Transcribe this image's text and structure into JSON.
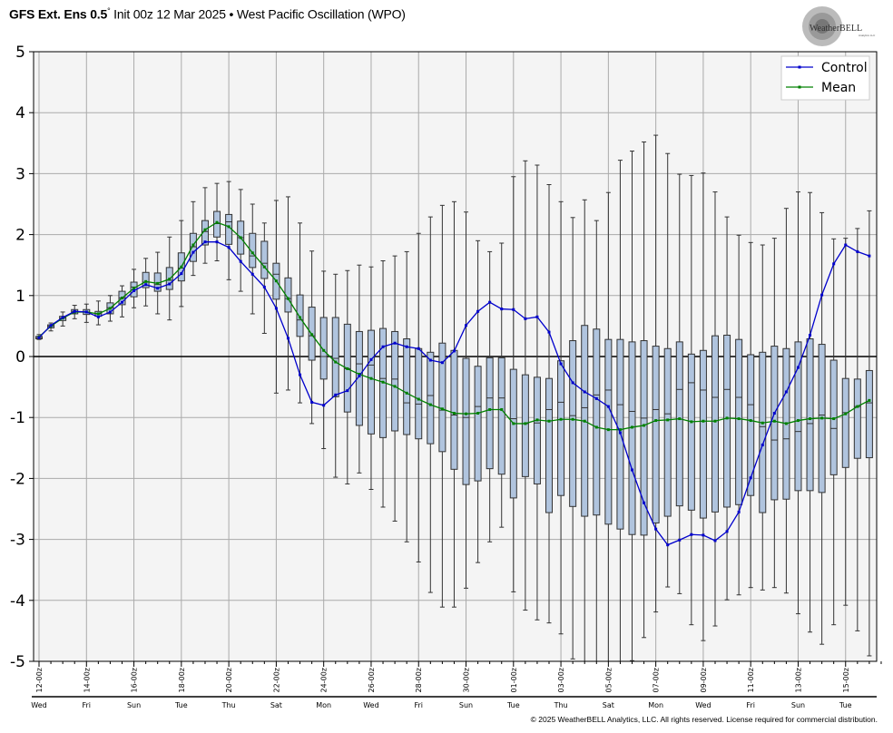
{
  "title": {
    "model": "GFS Ext.  Ens 0.5",
    "degree": "°",
    "rest": " Init 00z 12 Mar 2025 • West Pacific Oscillation (WPO)"
  },
  "logo": {
    "text": "WeatherBELL",
    "subtext": "Analytics LLC"
  },
  "copyright": "© 2025 WeatherBELL Analytics, LLC. All rights reserved. License required for commercial distribution.",
  "colors": {
    "control": "#0000cc",
    "mean": "#008000",
    "box_fill": "#b0c4de",
    "box_stroke": "#333333",
    "plot_bg": "#f4f4f4",
    "grid": "#aaaaaa"
  },
  "chart_data": {
    "type": "box",
    "title": "West Pacific Oscillation (WPO)",
    "ylim": [
      -5,
      5
    ],
    "yticks": [
      "5",
      "4",
      "3",
      "2",
      "1",
      "0",
      "-1",
      "-2",
      "-3",
      "-4",
      "-5"
    ],
    "step_hours": 12,
    "grid": true,
    "legend_position": "top-right",
    "legend": [
      "Control",
      "Mean"
    ],
    "xtick_labels": [
      "12-00z",
      "14-00z",
      "16-00z",
      "18-00z",
      "20-00z",
      "22-00z",
      "24-00z",
      "26-00z",
      "28-00z",
      "30-00z",
      "01-00z",
      "03-00z",
      "05-00z",
      "07-00z",
      "09-00z",
      "11-00z",
      "13-00z",
      "15-00z"
    ],
    "day_labels": [
      "Wed",
      "Fri",
      "Sun",
      "Tue",
      "Thu",
      "Sat",
      "Mon",
      "Wed",
      "Fri",
      "Sun",
      "Tue",
      "Thu",
      "Sat",
      "Mon",
      "Wed",
      "Fri",
      "Sun",
      "Tue"
    ],
    "control": [
      0.31,
      0.51,
      0.64,
      0.74,
      0.73,
      0.65,
      0.73,
      0.89,
      1.08,
      1.18,
      1.12,
      1.19,
      1.36,
      1.71,
      1.88,
      1.88,
      1.79,
      1.56,
      1.35,
      1.14,
      0.79,
      0.3,
      -0.3,
      -0.75,
      -0.8,
      -0.63,
      -0.56,
      -0.32,
      -0.05,
      0.16,
      0.22,
      0.16,
      0.13,
      -0.06,
      -0.1,
      0.09,
      0.51,
      0.74,
      0.89,
      0.78,
      0.77,
      0.62,
      0.65,
      0.4,
      -0.12,
      -0.43,
      -0.58,
      -0.69,
      -0.82,
      -1.25,
      -1.86,
      -2.4,
      -2.83,
      -3.09,
      -3.01,
      -2.92,
      -2.93,
      -3.02,
      -2.87,
      -2.55,
      -1.99,
      -1.45,
      -0.93,
      -0.58,
      -0.18,
      0.35,
      1.01,
      1.52,
      1.83,
      1.72,
      1.65
    ],
    "mean": [
      0.32,
      0.5,
      0.63,
      0.73,
      0.73,
      0.7,
      0.79,
      0.96,
      1.12,
      1.23,
      1.2,
      1.27,
      1.47,
      1.83,
      2.08,
      2.2,
      2.13,
      1.95,
      1.7,
      1.47,
      1.24,
      0.95,
      0.64,
      0.36,
      0.1,
      -0.09,
      -0.2,
      -0.29,
      -0.36,
      -0.42,
      -0.49,
      -0.6,
      -0.7,
      -0.79,
      -0.86,
      -0.93,
      -0.94,
      -0.93,
      -0.87,
      -0.87,
      -1.1,
      -1.1,
      -1.04,
      -1.06,
      -1.03,
      -1.03,
      -1.06,
      -1.16,
      -1.2,
      -1.2,
      -1.16,
      -1.13,
      -1.05,
      -1.04,
      -1.02,
      -1.07,
      -1.06,
      -1.06,
      -1.01,
      -1.02,
      -1.05,
      -1.09,
      -1.06,
      -1.1,
      -1.05,
      -1.02,
      -1.01,
      -1.02,
      -0.94,
      -0.82,
      -0.72
    ],
    "boxes": [
      [
        0.28,
        0.29,
        0.31,
        0.33,
        0.36
      ],
      [
        0.42,
        0.47,
        0.5,
        0.52,
        0.55
      ],
      [
        0.5,
        0.59,
        0.63,
        0.66,
        0.73
      ],
      [
        0.62,
        0.7,
        0.74,
        0.77,
        0.84
      ],
      [
        0.56,
        0.69,
        0.73,
        0.77,
        0.86
      ],
      [
        0.52,
        0.66,
        0.7,
        0.74,
        0.91
      ],
      [
        0.58,
        0.7,
        0.8,
        0.88,
        1.0
      ],
      [
        0.65,
        0.85,
        0.96,
        1.07,
        1.16
      ],
      [
        0.8,
        0.98,
        1.14,
        1.22,
        1.43
      ],
      [
        0.83,
        1.13,
        1.22,
        1.38,
        1.61
      ],
      [
        0.7,
        1.07,
        1.18,
        1.37,
        1.71
      ],
      [
        0.6,
        1.1,
        1.25,
        1.46,
        1.96
      ],
      [
        0.82,
        1.24,
        1.45,
        1.7,
        2.23
      ],
      [
        1.33,
        1.56,
        1.8,
        2.02,
        2.54
      ],
      [
        1.53,
        1.83,
        2.05,
        2.23,
        2.77
      ],
      [
        1.57,
        1.96,
        2.18,
        2.38,
        2.84
      ],
      [
        1.26,
        1.84,
        2.21,
        2.33,
        2.87
      ],
      [
        1.07,
        1.68,
        1.95,
        2.22,
        2.74
      ],
      [
        0.7,
        1.46,
        1.65,
        2.02,
        2.5
      ],
      [
        0.38,
        1.28,
        1.53,
        1.89,
        2.19
      ],
      [
        -0.6,
        0.94,
        1.35,
        1.53,
        2.56
      ],
      [
        -0.55,
        0.73,
        0.95,
        1.29,
        2.62
      ],
      [
        -0.76,
        0.33,
        0.6,
        1.01,
        2.19
      ],
      [
        -1.1,
        -0.06,
        0.34,
        0.81,
        1.73
      ],
      [
        -1.51,
        -0.37,
        0.0,
        0.64,
        1.4
      ],
      [
        -1.98,
        -0.66,
        -0.03,
        0.64,
        1.35
      ],
      [
        -2.09,
        -0.91,
        -0.2,
        0.53,
        1.41
      ],
      [
        -1.91,
        -1.13,
        -0.12,
        0.41,
        1.5
      ],
      [
        -2.18,
        -1.27,
        -0.14,
        0.43,
        1.47
      ],
      [
        -2.47,
        -1.33,
        -0.36,
        0.46,
        1.57
      ],
      [
        -2.7,
        -1.22,
        -0.37,
        0.41,
        1.65
      ],
      [
        -3.04,
        -1.28,
        -0.76,
        0.29,
        1.72
      ],
      [
        -3.37,
        -1.35,
        -0.78,
        0.13,
        2.02
      ],
      [
        -3.87,
        -1.43,
        -0.64,
        0.07,
        2.29
      ],
      [
        -4.11,
        -1.56,
        -0.88,
        0.22,
        2.48
      ],
      [
        -4.11,
        -1.85,
        -0.96,
        0.1,
        2.54
      ],
      [
        -3.8,
        -2.1,
        -1.0,
        -0.03,
        2.37
      ],
      [
        -3.38,
        -2.04,
        -0.82,
        -0.16,
        1.9
      ],
      [
        -3.04,
        -1.84,
        -0.68,
        -0.02,
        1.72
      ],
      [
        -2.8,
        -1.93,
        -0.68,
        -0.02,
        1.86
      ],
      [
        -3.86,
        -2.32,
        -1.02,
        -0.21,
        2.95
      ],
      [
        -4.16,
        -1.97,
        -1.1,
        -0.3,
        3.21
      ],
      [
        -4.32,
        -2.09,
        -1.09,
        -0.34,
        3.14
      ],
      [
        -4.37,
        -2.56,
        -0.87,
        -0.36,
        2.82
      ],
      [
        -4.55,
        -2.28,
        -0.75,
        -0.07,
        2.54
      ],
      [
        -4.96,
        -2.46,
        -0.97,
        0.26,
        2.28
      ],
      [
        -5.0,
        -2.62,
        -0.84,
        0.51,
        2.57
      ],
      [
        -5.0,
        -2.6,
        -0.63,
        0.45,
        2.23
      ],
      [
        -5.0,
        -2.75,
        -0.55,
        0.28,
        2.69
      ],
      [
        -5.0,
        -2.83,
        -0.79,
        0.28,
        3.22
      ],
      [
        -4.99,
        -2.92,
        -0.9,
        0.24,
        3.37
      ],
      [
        -4.61,
        -2.93,
        -1.01,
        0.26,
        3.52
      ],
      [
        -4.19,
        -2.73,
        -0.87,
        0.17,
        3.63
      ],
      [
        -3.78,
        -2.62,
        -0.94,
        0.13,
        3.33
      ],
      [
        -3.89,
        -2.45,
        -0.54,
        0.24,
        2.99
      ],
      [
        -4.4,
        -2.52,
        -0.43,
        0.04,
        2.97
      ],
      [
        -4.66,
        -2.65,
        -0.55,
        0.1,
        3.01
      ],
      [
        -4.42,
        -2.55,
        -0.67,
        0.34,
        2.7
      ],
      [
        -3.99,
        -2.47,
        -0.54,
        0.35,
        2.29
      ],
      [
        -3.91,
        -2.43,
        -0.67,
        0.28,
        1.99
      ],
      [
        -3.79,
        -2.28,
        -0.79,
        0.03,
        1.87
      ],
      [
        -3.83,
        -2.56,
        -1.15,
        0.07,
        1.83
      ],
      [
        -3.79,
        -2.35,
        -1.37,
        0.17,
        1.94
      ],
      [
        -3.88,
        -2.34,
        -1.35,
        0.13,
        2.43
      ],
      [
        -4.22,
        -2.2,
        -1.23,
        0.24,
        2.7
      ],
      [
        -4.52,
        -2.2,
        -1.1,
        0.29,
        2.69
      ],
      [
        -4.72,
        -2.23,
        -0.96,
        0.2,
        2.36
      ],
      [
        -4.4,
        -1.94,
        -1.18,
        -0.06,
        1.93
      ],
      [
        -4.08,
        -1.82,
        -0.92,
        -0.36,
        1.94
      ],
      [
        -4.5,
        -1.67,
        -0.82,
        -0.37,
        2.1
      ],
      [
        -4.91,
        -1.66,
        -0.76,
        -0.23,
        2.39
      ]
    ]
  }
}
